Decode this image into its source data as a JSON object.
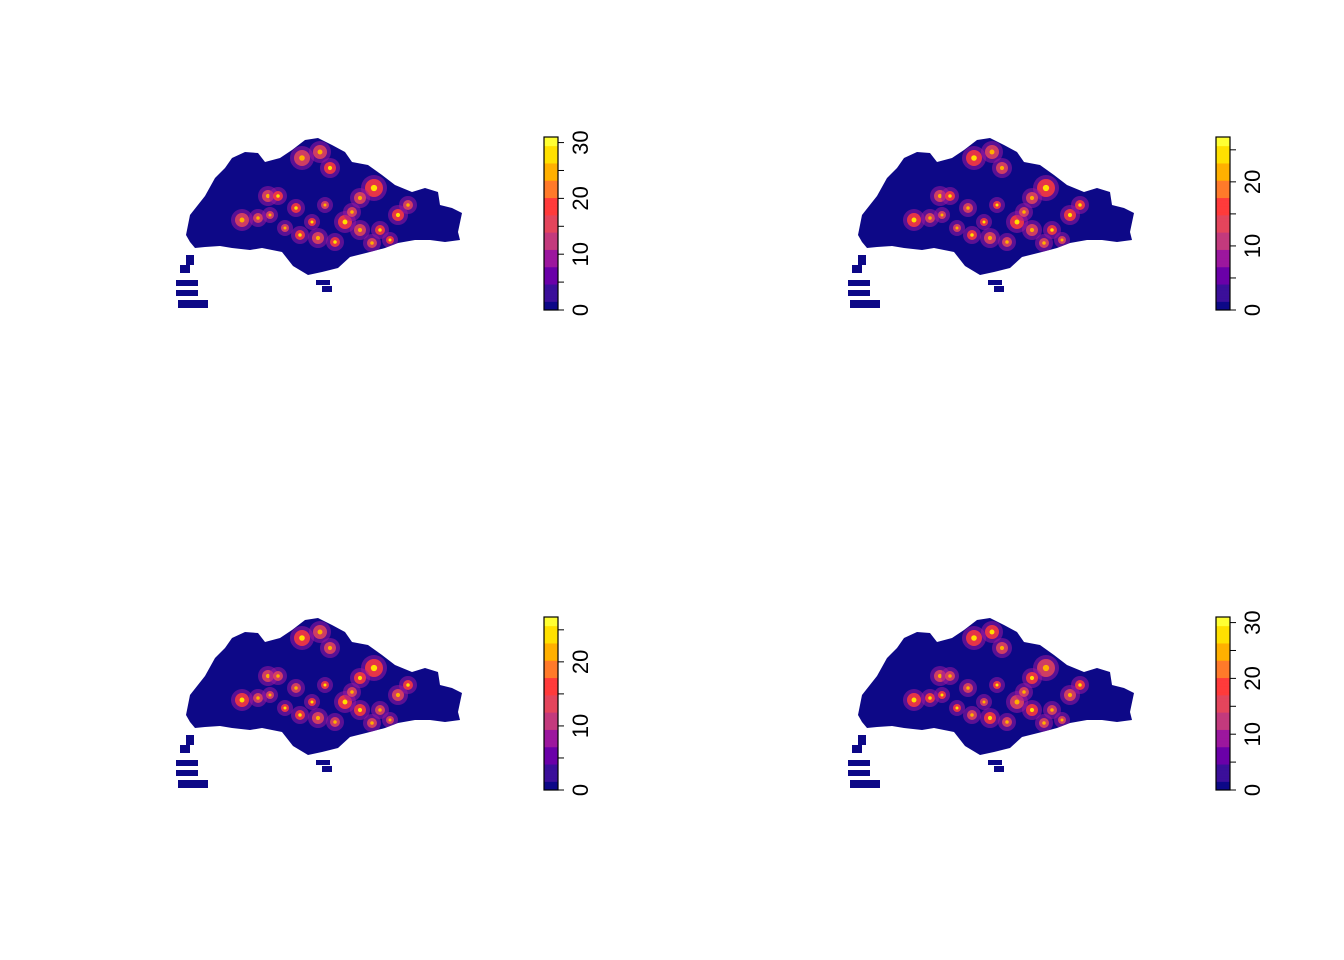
{
  "chart_data": [
    {
      "type": "heatmap",
      "position": "top-left",
      "colorbar": {
        "min": 0,
        "max": 31,
        "ticks": [
          0,
          10,
          20,
          30
        ],
        "tick_labels": [
          "0",
          "10",
          "20",
          "30"
        ],
        "palette": [
          "#0d0887",
          "#3b0f9a",
          "#6a00a8",
          "#9c179e",
          "#c33a7d",
          "#e4455c",
          "#ff3b3b",
          "#ff7a2a",
          "#ffb000",
          "#ffe000",
          "#ffff33"
        ]
      }
    },
    {
      "type": "heatmap",
      "position": "top-right",
      "colorbar": {
        "min": 0,
        "max": 27,
        "ticks": [
          0,
          10,
          20
        ],
        "tick_labels": [
          "0",
          "10",
          "20"
        ],
        "palette": [
          "#0d0887",
          "#3b0f9a",
          "#6a00a8",
          "#9c179e",
          "#c33a7d",
          "#e4455c",
          "#ff3b3b",
          "#ff7a2a",
          "#ffb000",
          "#ffe000",
          "#ffff33"
        ]
      }
    },
    {
      "type": "heatmap",
      "position": "bottom-left",
      "colorbar": {
        "min": 0,
        "max": 27,
        "ticks": [
          0,
          10,
          20
        ],
        "tick_labels": [
          "0",
          "10",
          "20"
        ],
        "palette": [
          "#0d0887",
          "#3b0f9a",
          "#6a00a8",
          "#9c179e",
          "#c33a7d",
          "#e4455c",
          "#ff3b3b",
          "#ff7a2a",
          "#ffb000",
          "#ffe000",
          "#ffff33"
        ]
      }
    },
    {
      "type": "heatmap",
      "position": "bottom-right",
      "colorbar": {
        "min": 0,
        "max": 31,
        "ticks": [
          0,
          10,
          20,
          30
        ],
        "tick_labels": [
          "0",
          "10",
          "20",
          "30"
        ],
        "palette": [
          "#0d0887",
          "#3b0f9a",
          "#6a00a8",
          "#9c179e",
          "#c33a7d",
          "#e4455c",
          "#ff3b3b",
          "#ff7a2a",
          "#ffb000",
          "#ffe000",
          "#ffff33"
        ]
      }
    }
  ]
}
